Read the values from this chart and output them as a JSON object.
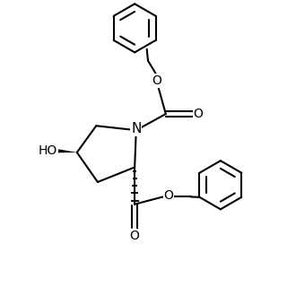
{
  "background": "#ffffff",
  "line_color": "#000000",
  "line_width": 1.5,
  "figsize": [
    3.3,
    3.3
  ],
  "dpi": 100,
  "xlim": [
    0,
    10
  ],
  "ylim": [
    0,
    10
  ]
}
